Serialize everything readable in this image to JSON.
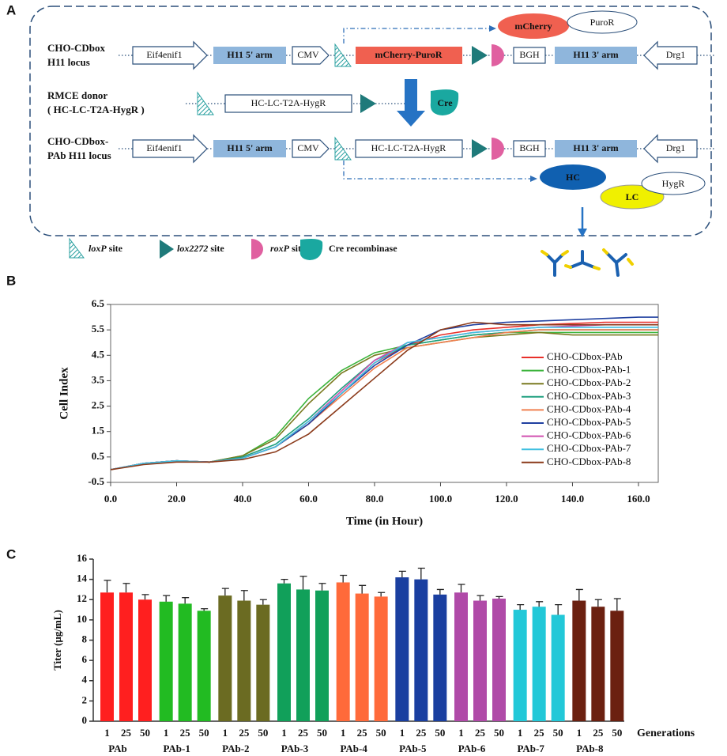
{
  "panels": [
    "A",
    "B",
    "C"
  ],
  "diagram": {
    "row_labels": [
      [
        "CHO-CDbox",
        "H11 locus"
      ],
      [
        "RMCE donor",
        "( HC-LC-T2A-HygR )"
      ],
      [
        "CHO-CDbox-",
        "PAb H11 locus"
      ]
    ],
    "row1": {
      "left_gene": "Eif4enif1",
      "left_arm": "H11 5' arm",
      "promoter": "CMV",
      "cassette": "mCherry-PuroR",
      "polyA": "BGH",
      "right_arm": "H11 3' arm",
      "right_gene": "Drg1"
    },
    "row1_products": [
      "mCherry",
      "PuroR"
    ],
    "donor_cassette": "HC-LC-T2A-HygR",
    "recombinase": "Cre",
    "row3": {
      "left_gene": "Eif4enif1",
      "left_arm": "H11 5' arm",
      "promoter": "CMV",
      "cassette": "HC-LC-T2A-HygR",
      "polyA": "BGH",
      "right_arm": "H11 3' arm",
      "right_gene": "Drg1"
    },
    "row3_products": [
      "HC",
      "LC",
      "HygR"
    ],
    "legend": [
      {
        "italic": "loxP",
        "text": " site"
      },
      {
        "italic": "lox2272",
        "text": " site"
      },
      {
        "italic": "roxP",
        "text": " site"
      },
      {
        "italic": "",
        "text": "Cre recombinase"
      }
    ]
  },
  "chart_data": [
    {
      "type": "line",
      "x_label": "Time (in Hour)",
      "y_label": "Cell Index",
      "x": [
        0,
        10,
        20,
        30,
        40,
        50,
        60,
        70,
        80,
        90,
        100,
        110,
        120,
        130,
        140,
        150,
        160,
        166
      ],
      "xlim": [
        0,
        166
      ],
      "xticks": [
        {
          "value": 0,
          "label": "0.0"
        },
        {
          "value": 20,
          "label": "20.0"
        },
        {
          "value": 40,
          "label": "40.0"
        },
        {
          "value": 60,
          "label": "60.0"
        },
        {
          "value": 80,
          "label": "80.0"
        },
        {
          "value": 100,
          "label": "100.0"
        },
        {
          "value": 120,
          "label": "120.0"
        },
        {
          "value": 140,
          "label": "140.0"
        },
        {
          "value": 160,
          "label": "160.0"
        }
      ],
      "ylim": [
        -0.5,
        6.5
      ],
      "yticks": [
        -0.5,
        0.5,
        1.5,
        2.5,
        3.5,
        4.5,
        5.5,
        6.5
      ],
      "series": [
        {
          "name": "CHO-CDbox-PAb",
          "color": "#e8302a",
          "values": [
            0,
            0.25,
            0.35,
            0.3,
            0.45,
            0.9,
            1.8,
            3.0,
            4.2,
            4.9,
            5.3,
            5.5,
            5.6,
            5.7,
            5.75,
            5.8,
            5.8,
            5.8
          ]
        },
        {
          "name": "CHO-CDbox-PAb-1",
          "color": "#3cb43c",
          "values": [
            0,
            0.25,
            0.35,
            0.3,
            0.55,
            1.3,
            2.8,
            3.9,
            4.6,
            4.9,
            5.1,
            5.3,
            5.4,
            5.4,
            5.4,
            5.4,
            5.4,
            5.4
          ]
        },
        {
          "name": "CHO-CDbox-PAb-2",
          "color": "#7a7a20",
          "values": [
            0,
            0.25,
            0.35,
            0.3,
            0.55,
            1.2,
            2.6,
            3.8,
            4.5,
            4.8,
            5.0,
            5.2,
            5.3,
            5.4,
            5.3,
            5.3,
            5.3,
            5.3
          ]
        },
        {
          "name": "CHO-CDbox-PAb-3",
          "color": "#20a080",
          "values": [
            0,
            0.25,
            0.35,
            0.3,
            0.5,
            1.0,
            2.0,
            3.2,
            4.3,
            4.9,
            5.1,
            5.3,
            5.4,
            5.5,
            5.5,
            5.5,
            5.5,
            5.5
          ]
        },
        {
          "name": "CHO-CDbox-PAb-4",
          "color": "#f08050",
          "values": [
            0,
            0.25,
            0.35,
            0.3,
            0.45,
            0.9,
            1.8,
            2.9,
            4.0,
            4.8,
            5.0,
            5.2,
            5.4,
            5.5,
            5.5,
            5.5,
            5.5,
            5.5
          ]
        },
        {
          "name": "CHO-CDbox-PAb-5",
          "color": "#2040a0",
          "values": [
            0,
            0.25,
            0.35,
            0.3,
            0.45,
            0.9,
            1.8,
            3.0,
            4.1,
            4.9,
            5.5,
            5.7,
            5.8,
            5.85,
            5.9,
            5.95,
            6.0,
            6.0
          ]
        },
        {
          "name": "CHO-CDbox-PAb-6",
          "color": "#d050b0",
          "values": [
            0,
            0.25,
            0.35,
            0.3,
            0.45,
            0.9,
            1.9,
            3.1,
            4.3,
            5.0,
            5.2,
            5.4,
            5.5,
            5.6,
            5.65,
            5.7,
            5.7,
            5.7
          ]
        },
        {
          "name": "CHO-CDbox-PAb-7",
          "color": "#40c0e0",
          "values": [
            0,
            0.25,
            0.35,
            0.3,
            0.45,
            0.9,
            1.9,
            3.0,
            4.2,
            5.0,
            5.2,
            5.4,
            5.5,
            5.6,
            5.6,
            5.6,
            5.6,
            5.6
          ]
        },
        {
          "name": "CHO-CDbox-PAb-8",
          "color": "#8b3a1a",
          "values": [
            0,
            0.2,
            0.3,
            0.3,
            0.4,
            0.7,
            1.4,
            2.5,
            3.6,
            4.7,
            5.5,
            5.8,
            5.7,
            5.7,
            5.7,
            5.7,
            5.7,
            5.7
          ]
        }
      ]
    },
    {
      "type": "bar",
      "y_label": "Titer (μg/mL)",
      "x_label": "Generations",
      "categories": [
        "1",
        "25",
        "50"
      ],
      "ylim": [
        0,
        16
      ],
      "yticks": [
        0,
        2,
        4,
        6,
        8,
        10,
        12,
        14,
        16
      ],
      "series": [
        {
          "name": "PAb",
          "color": "#ff1f1f",
          "values": [
            12.7,
            12.7,
            12.0
          ],
          "errors": [
            1.2,
            0.9,
            0.5
          ]
        },
        {
          "name": "PAb-1",
          "color": "#22bb22",
          "values": [
            11.8,
            11.6,
            10.9
          ],
          "errors": [
            0.6,
            0.6,
            0.2
          ]
        },
        {
          "name": "PAb-2",
          "color": "#6b6b22",
          "values": [
            12.4,
            11.9,
            11.5
          ],
          "errors": [
            0.7,
            1.0,
            0.5
          ]
        },
        {
          "name": "PAb-3",
          "color": "#11a05a",
          "values": [
            13.6,
            13.0,
            12.9
          ],
          "errors": [
            0.4,
            1.3,
            0.7
          ]
        },
        {
          "name": "PAb-4",
          "color": "#ff6a3a",
          "values": [
            13.7,
            12.6,
            12.3
          ],
          "errors": [
            0.7,
            0.8,
            0.4
          ]
        },
        {
          "name": "PAb-5",
          "color": "#1a3fa0",
          "values": [
            14.2,
            14.0,
            12.5
          ],
          "errors": [
            0.6,
            1.1,
            0.5
          ]
        },
        {
          "name": "PAb-6",
          "color": "#b04aa8",
          "values": [
            12.7,
            11.9,
            12.1
          ],
          "errors": [
            0.8,
            0.5,
            0.2
          ]
        },
        {
          "name": "PAb-7",
          "color": "#22c8d8",
          "values": [
            11.0,
            11.3,
            10.5
          ],
          "errors": [
            0.5,
            0.5,
            1.0
          ]
        },
        {
          "name": "PAb-8",
          "color": "#6b2010",
          "values": [
            11.9,
            11.3,
            10.9
          ],
          "errors": [
            1.1,
            0.7,
            1.2
          ]
        }
      ]
    }
  ]
}
